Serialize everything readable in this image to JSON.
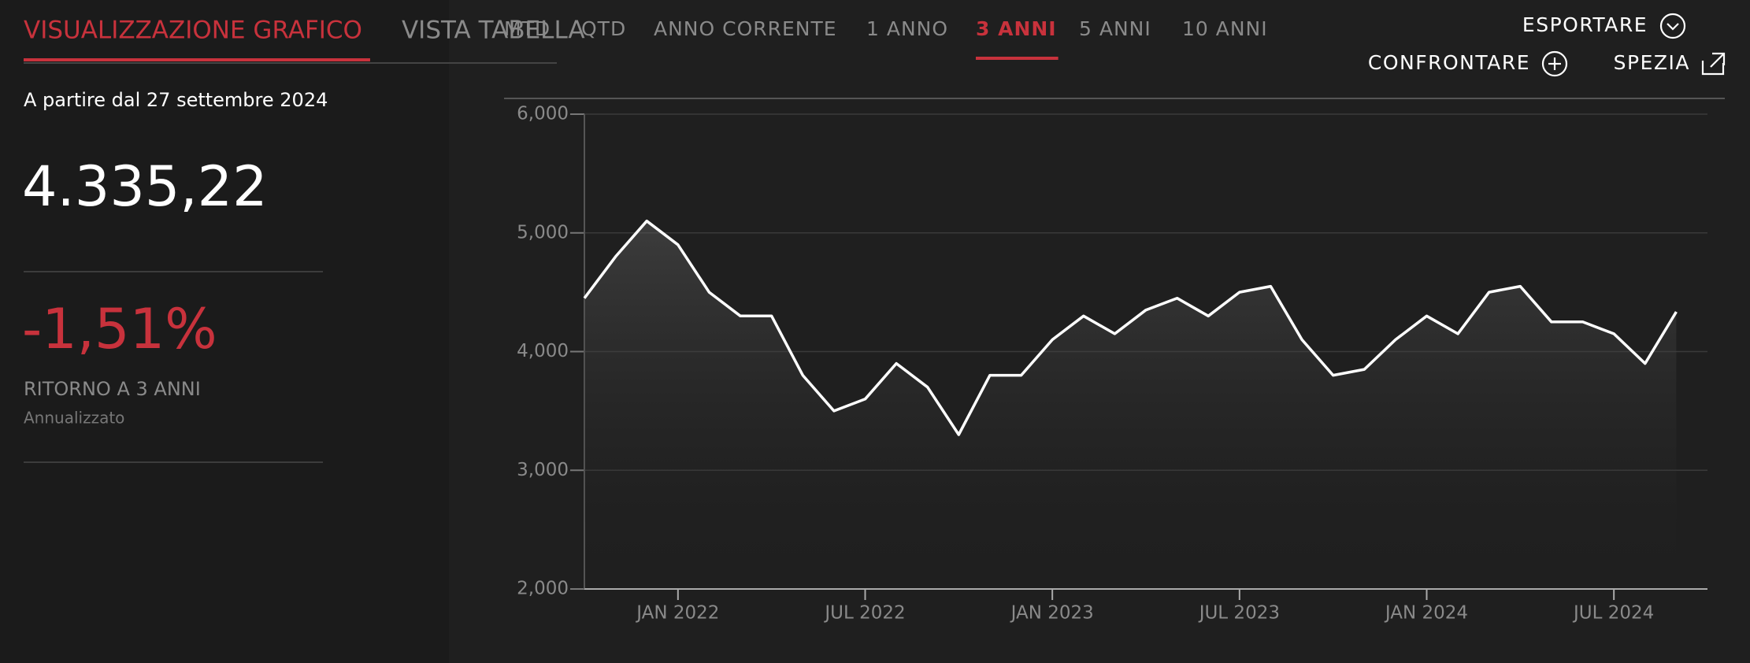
{
  "tabs": [
    {
      "label": "VISUALIZZAZIONE GRAFICO",
      "active": true
    },
    {
      "label": "VISTA TABELLA"
    }
  ],
  "ranges": [
    {
      "label": "MTD"
    },
    {
      "label": "QTD"
    },
    {
      "label": "ANNO CORRENTE"
    },
    {
      "label": "1 ANNO"
    },
    {
      "label": "3 ANNI",
      "active": true
    },
    {
      "label": "5 ANNI"
    },
    {
      "label": "10 ANNI"
    }
  ],
  "actions": [
    "ESPORTARE",
    "CONFRONTARE",
    "SPEZIA"
  ],
  "summary": {
    "as_of": "A partire dal 27 settembre 2024",
    "value": "4.335,22",
    "return": "-1,51%",
    "return_label": "RITORNO A 3 ANNI",
    "return_note": "Annualizzato"
  },
  "chart_data": {
    "type": "line",
    "color": "#ffffff",
    "x": [
      "2021-10",
      "2021-11",
      "2021-12",
      "2022-01",
      "2022-02",
      "2022-03",
      "2022-04",
      "2022-05",
      "2022-06",
      "2022-07",
      "2022-08",
      "2022-09",
      "2022-10",
      "2022-11",
      "2022-12",
      "2023-01",
      "2023-02",
      "2023-03",
      "2023-04",
      "2023-05",
      "2023-06",
      "2023-07",
      "2023-08",
      "2023-09",
      "2023-10",
      "2023-11",
      "2023-12",
      "2024-01",
      "2024-02",
      "2024-03",
      "2024-04",
      "2024-05",
      "2024-06",
      "2024-07",
      "2024-08",
      "2024-09"
    ],
    "values": [
      4450,
      4800,
      5100,
      4900,
      4500,
      4300,
      4300,
      3800,
      3500,
      3600,
      3900,
      3700,
      3300,
      3800,
      3800,
      4100,
      4300,
      4150,
      4350,
      4450,
      4300,
      4500,
      4550,
      4100,
      3800,
      3850,
      4100,
      4300,
      4150,
      4500,
      4550,
      4250,
      4250,
      4150,
      3900,
      4335
    ],
    "xlim": [
      "2021-10",
      "2024-10"
    ],
    "xticks": [
      {
        "value": "2022-01",
        "label": "JAN 2022"
      },
      {
        "value": "2022-07",
        "label": "JUL 2022"
      },
      {
        "value": "2023-01",
        "label": "JAN 2023"
      },
      {
        "value": "2023-07",
        "label": "JUL 2023"
      },
      {
        "value": "2024-01",
        "label": "JAN 2024"
      },
      {
        "value": "2024-07",
        "label": "JUL 2024"
      }
    ],
    "ylim": [
      2000,
      6000
    ],
    "yticks": [
      {
        "value": 2000,
        "label": "2,000"
      },
      {
        "value": 3000,
        "label": "3,000"
      },
      {
        "value": 4000,
        "label": "4,000"
      },
      {
        "value": 5000,
        "label": "5,000"
      },
      {
        "value": 6000,
        "label": "6,000"
      }
    ],
    "grid": true
  }
}
